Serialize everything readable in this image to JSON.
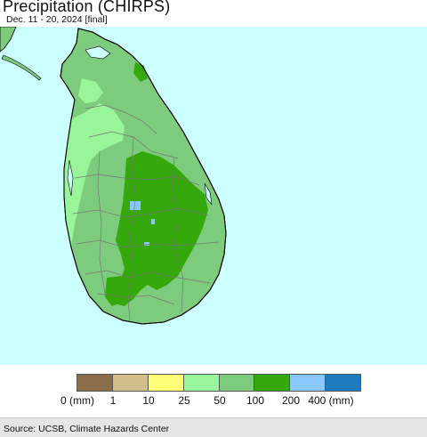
{
  "title": "Precipitation (CHIRPS)",
  "subtitle": "Dec. 11 - 20, 2024 [final]",
  "colors": {
    "ocean": "#ccffff",
    "land_border": "#777777",
    "coast": "#000000",
    "c_0_1": "#8b6d4a",
    "c_1_10": "#d2be88",
    "c_10_25": "#ffff77",
    "c_25_50": "#99f59a",
    "c_50_100": "#7dcb7d",
    "c_100_200": "#35a80b",
    "c_200_400": "#88c8ff",
    "c_400_plus": "#1e7bbd"
  },
  "legend": {
    "colors": [
      "#8b6d4a",
      "#d2be88",
      "#ffff77",
      "#99f59a",
      "#7dcb7d",
      "#35a80b",
      "#88c8ff",
      "#1e7bbd"
    ],
    "labels": [
      "0 (mm)",
      "1",
      "10",
      "25",
      "50",
      "100",
      "200",
      "400 (mm)"
    ]
  },
  "source": "Source: UCSB, Climate Hazards Center"
}
